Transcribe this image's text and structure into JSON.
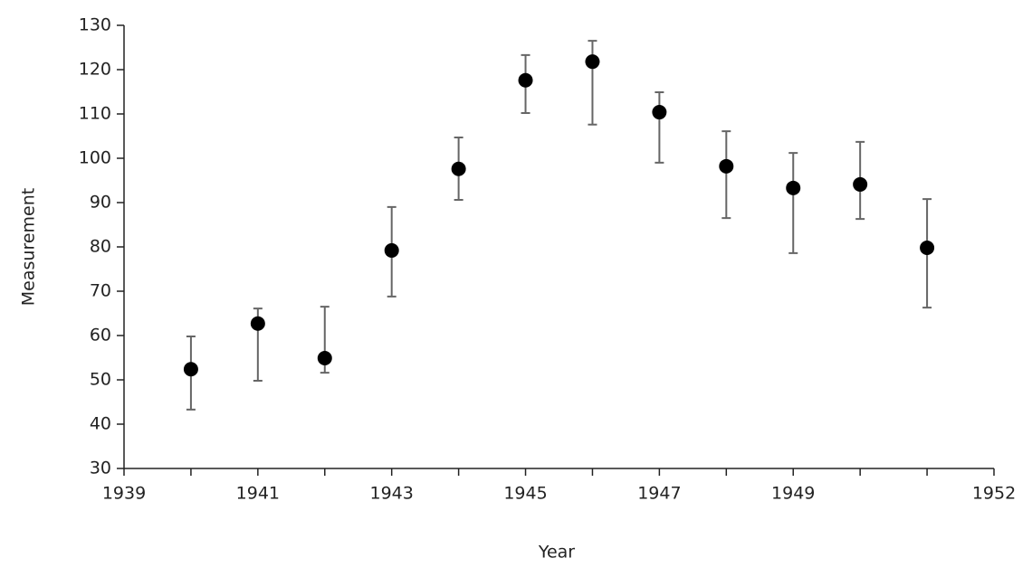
{
  "chart_data": {
    "type": "scatter",
    "x_label": "Year",
    "y_label": "Measurement",
    "x": [
      1940,
      1941,
      1942,
      1943,
      1944,
      1945,
      1946,
      1947,
      1948,
      1949,
      1950,
      1951
    ],
    "series": [
      {
        "color": "#000000",
        "values": [
          52.4,
          62.7,
          54.9,
          79.2,
          97.6,
          117.6,
          121.8,
          110.4,
          98.2,
          93.3,
          94.1,
          79.8
        ],
        "error_minus": [
          9.1,
          12.9,
          3.3,
          10.4,
          7.0,
          7.4,
          14.2,
          11.4,
          11.7,
          14.7,
          7.8,
          13.5
        ],
        "error_plus": [
          7.4,
          3.4,
          11.6,
          9.8,
          7.1,
          5.7,
          4.7,
          4.5,
          7.9,
          7.9,
          9.6,
          11.0
        ],
        "error_color": "#666666"
      }
    ],
    "xlim": [
      1939,
      1952
    ],
    "xticks": [
      1939,
      1941,
      1943,
      1945,
      1947,
      1949,
      1952
    ],
    "xminorticks": [
      1940,
      1942,
      1944,
      1946,
      1948,
      1950,
      1951
    ],
    "ylim": [
      30,
      130
    ],
    "yticks": [
      30,
      40,
      50,
      60,
      70,
      80,
      90,
      100,
      110,
      120,
      130
    ],
    "grid": false
  }
}
